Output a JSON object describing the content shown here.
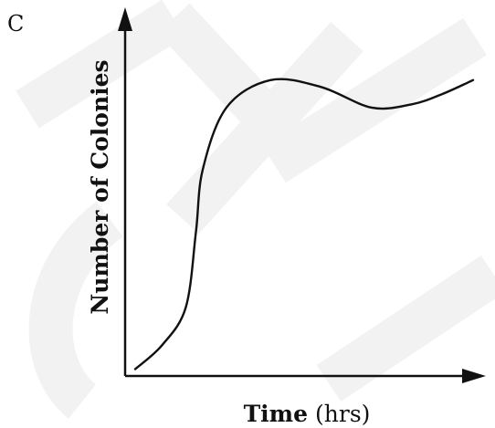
{
  "panel_label": "C",
  "chart_data": {
    "type": "line",
    "title": "",
    "ylabel": "Number of Colonies",
    "xlabel_main": "Time",
    "xlabel_unit": "(hrs)",
    "x_ticks": [],
    "y_ticks": [],
    "axis_ranges_shown": false,
    "grid": false,
    "legend": "none",
    "series": [
      {
        "line_color": "#111111",
        "points": [
          {
            "x": 0.0,
            "y": 0.02
          },
          {
            "x": 0.08,
            "y": 0.09
          },
          {
            "x": 0.15,
            "y": 0.2
          },
          {
            "x": 0.18,
            "y": 0.42
          },
          {
            "x": 0.2,
            "y": 0.6
          },
          {
            "x": 0.27,
            "y": 0.78
          },
          {
            "x": 0.4,
            "y": 0.86
          },
          {
            "x": 0.55,
            "y": 0.84
          },
          {
            "x": 0.7,
            "y": 0.78
          },
          {
            "x": 0.82,
            "y": 0.79
          },
          {
            "x": 0.91,
            "y": 0.82
          },
          {
            "x": 1.0,
            "y": 0.86
          }
        ]
      }
    ],
    "watermark_color": "#f2f2f2"
  }
}
